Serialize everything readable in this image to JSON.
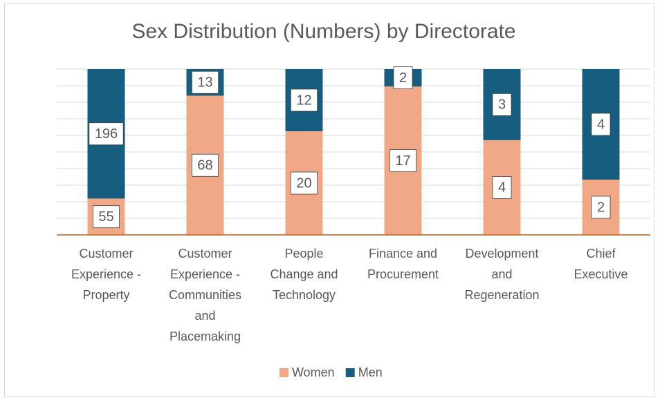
{
  "chart_data": {
    "type": "bar",
    "stacking": "percent",
    "title": "Sex Distribution (Numbers) by Directorate",
    "categories": [
      "Customer Experience - Property",
      "Customer Experience - Communities and Placemaking",
      "People Change and Technology",
      "Finance and Procurement",
      "Development and Regeneration",
      "Chief Executive"
    ],
    "series": [
      {
        "name": "Women",
        "color": "#f1a886",
        "values": [
          55,
          68,
          20,
          17,
          4,
          2
        ]
      },
      {
        "name": "Men",
        "color": "#175d7f",
        "values": [
          196,
          13,
          12,
          2,
          3,
          4
        ]
      }
    ],
    "grid": true,
    "legend": "bottom"
  }
}
